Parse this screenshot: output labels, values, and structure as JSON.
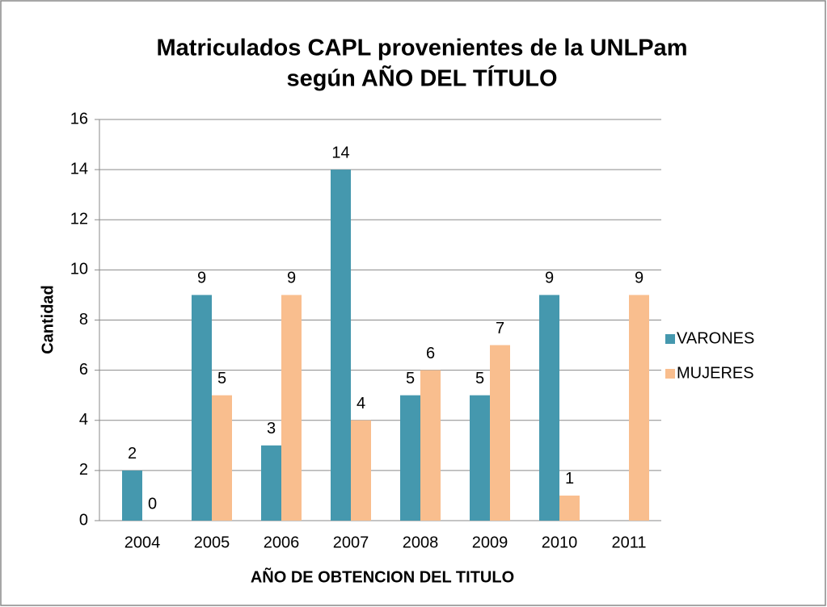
{
  "chart_data": {
    "type": "bar",
    "title": "Matriculados CAPL provenientes de la UNLPam",
    "subtitle": "según AÑO DEL TÍTULO",
    "x_label": "AÑO DE OBTENCION DEL TITULO",
    "y_label": "Cantidad",
    "categories": [
      "2004",
      "2005",
      "2006",
      "2007",
      "2008",
      "2009",
      "2010",
      "2011"
    ],
    "series": [
      {
        "name": "VARONES",
        "color": "#4598ae",
        "values": [
          2,
          9,
          3,
          14,
          5,
          5,
          9,
          null
        ]
      },
      {
        "name": "MUJERES",
        "color": "#f9be8e",
        "values": [
          0,
          5,
          9,
          4,
          6,
          7,
          1,
          9
        ]
      }
    ],
    "ylim": [
      0,
      16
    ],
    "yticks": [
      0,
      2,
      4,
      6,
      8,
      10,
      12,
      14,
      16
    ],
    "grid": true,
    "legend": "right"
  }
}
